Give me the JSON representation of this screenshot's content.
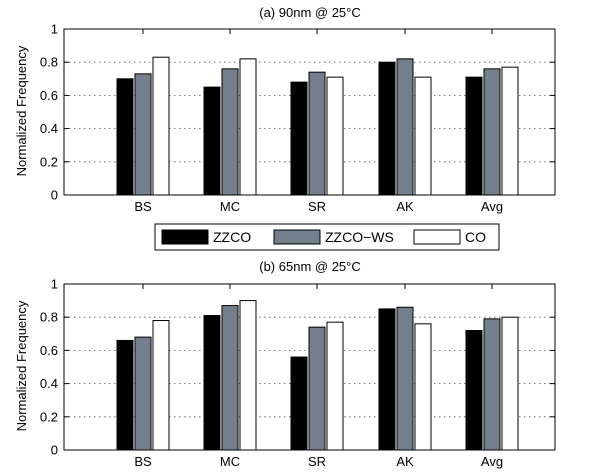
{
  "chart_data": [
    {
      "type": "bar",
      "title": "(a) 90nm @ 25°C",
      "ylabel": "Normalized Frequency",
      "xlabel": "",
      "categories": [
        "BS",
        "MC",
        "SR",
        "AK",
        "Avg"
      ],
      "ylim": [
        0,
        1
      ],
      "yticks": [
        "0",
        "0.2",
        "0.4",
        "0.6",
        "0.8",
        "1"
      ],
      "grid": true,
      "series": [
        {
          "name": "ZZCO",
          "color": "#000000",
          "values": [
            0.7,
            0.65,
            0.68,
            0.8,
            0.71
          ]
        },
        {
          "name": "ZZCO−WS",
          "color": "#737f8c",
          "values": [
            0.73,
            0.76,
            0.74,
            0.82,
            0.76
          ]
        },
        {
          "name": "CO",
          "color": "#ffffff",
          "values": [
            0.83,
            0.82,
            0.71,
            0.71,
            0.77
          ]
        }
      ]
    },
    {
      "type": "bar",
      "title": "(b) 65nm @ 25°C",
      "ylabel": "Normalized Frequency",
      "xlabel": "",
      "categories": [
        "BS",
        "MC",
        "SR",
        "AK",
        "Avg"
      ],
      "ylim": [
        0,
        1
      ],
      "yticks": [
        "0",
        "0.2",
        "0.4",
        "0.6",
        "0.8",
        "1"
      ],
      "grid": true,
      "series": [
        {
          "name": "ZZCO",
          "color": "#000000",
          "values": [
            0.66,
            0.81,
            0.56,
            0.85,
            0.72
          ]
        },
        {
          "name": "ZZCO−WS",
          "color": "#737f8c",
          "values": [
            0.68,
            0.87,
            0.74,
            0.86,
            0.79
          ]
        },
        {
          "name": "CO",
          "color": "#ffffff",
          "values": [
            0.78,
            0.9,
            0.77,
            0.76,
            0.8
          ]
        }
      ]
    }
  ],
  "legend": {
    "placement": "between-panels",
    "items": [
      {
        "label": "ZZCO",
        "color": "#000000"
      },
      {
        "label": "ZZCO−WS",
        "color": "#737f8c"
      },
      {
        "label": "CO",
        "color": "#ffffff"
      }
    ]
  }
}
